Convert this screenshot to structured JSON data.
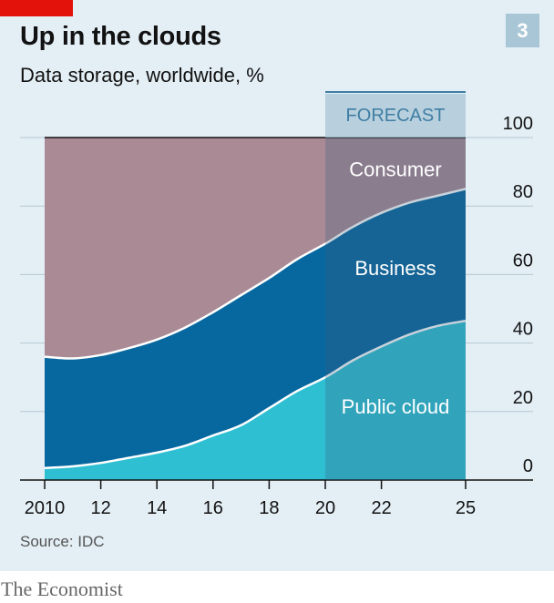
{
  "header": {
    "title": "Up in the clouds",
    "subtitle": "Data storage, worldwide, %",
    "number": "3"
  },
  "footer": {
    "source": "Source: IDC",
    "brand": "The Economist"
  },
  "colors": {
    "public_cloud": "#2fbfd3",
    "business": "#07679f",
    "consumer": "#a98a95",
    "forecast_shade": "#3a5f7d",
    "accent": "#e3120b"
  },
  "chart_data": {
    "type": "area",
    "stacked": true,
    "title": "Up in the clouds",
    "subtitle": "Data storage, worldwide, %",
    "x": [
      2010,
      2011,
      2012,
      2013,
      2014,
      2015,
      2016,
      2017,
      2018,
      2019,
      2020,
      2021,
      2022,
      2023,
      2024,
      2025
    ],
    "x_tick_values": [
      2010,
      2012,
      2014,
      2016,
      2018,
      2020,
      2022,
      2025
    ],
    "x_tick_labels": [
      "2010",
      "12",
      "14",
      "16",
      "18",
      "20",
      "22",
      "25"
    ],
    "ylim": [
      0,
      100
    ],
    "y_ticks": [
      0,
      20,
      40,
      60,
      80,
      100
    ],
    "y_axis_side": "right",
    "grid": true,
    "forecast": {
      "label": "FORECAST",
      "from": 2020,
      "to": 2025
    },
    "series": [
      {
        "name": "Public cloud",
        "values": [
          3.5,
          4,
          5,
          6.5,
          8,
          10,
          13,
          16,
          21,
          26,
          30,
          35,
          39,
          42.5,
          45,
          46.5
        ]
      },
      {
        "name": "Business",
        "values": [
          32.5,
          31.5,
          31.5,
          32,
          33,
          34.5,
          36,
          38,
          38,
          38.5,
          39,
          39,
          39,
          38.5,
          38,
          38.5
        ]
      },
      {
        "name": "Consumer",
        "values": [
          64,
          64.5,
          63.5,
          61.5,
          59,
          55.5,
          51,
          46,
          41,
          35.5,
          31,
          26,
          22,
          19,
          17,
          15
        ]
      }
    ]
  }
}
